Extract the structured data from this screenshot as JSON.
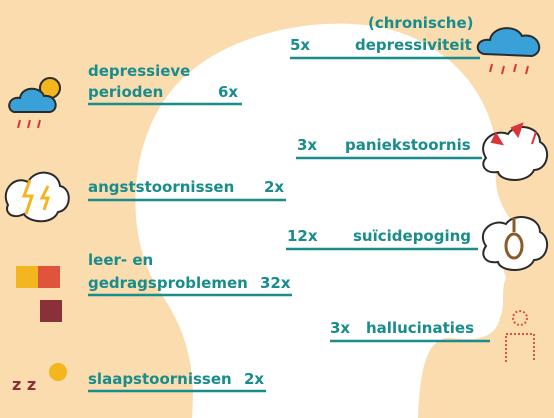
{
  "left": [
    {
      "lines": [
        "depressieve",
        "perioden"
      ],
      "count": "6x"
    },
    {
      "lines": [
        "angststoornissen"
      ],
      "count": "2x"
    },
    {
      "lines": [
        "leer- en",
        "gedragsproblemen"
      ],
      "count": "32x"
    },
    {
      "lines": [
        "slaapstoornissen"
      ],
      "count": "2x"
    }
  ],
  "right": [
    {
      "lines": [
        "(chronische)",
        "depressiviteit"
      ],
      "count": "5x"
    },
    {
      "lines": [
        "paniekstoornis"
      ],
      "count": "3x"
    },
    {
      "lines": [
        "suïcidepoging"
      ],
      "count": "12x"
    },
    {
      "lines": [
        "hallucinaties"
      ],
      "count": "3x"
    }
  ]
}
